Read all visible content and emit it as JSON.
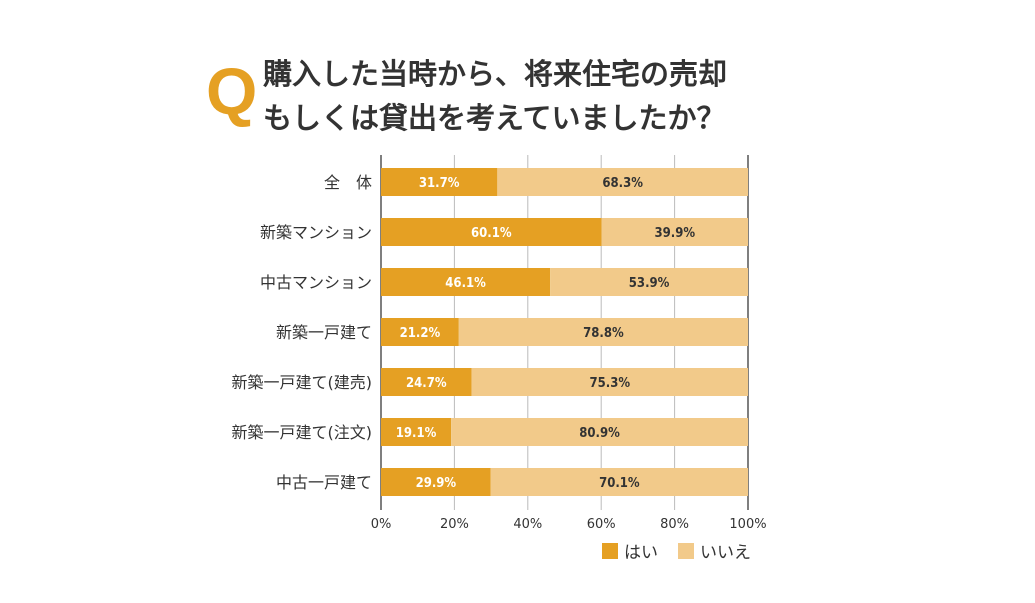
{
  "title": {
    "q_mark": "Q",
    "line1": "購入した当時から、将来住宅の売却",
    "line2": "もしくは貸出を考えていましたか？"
  },
  "chart_data": {
    "type": "bar",
    "orientation": "horizontal",
    "stacked": true,
    "categories": [
      "全　体",
      "新築マンション",
      "中古マンション",
      "新築一戸建て",
      "新築一戸建て(建売)",
      "新築一戸建て(注文)",
      "中古一戸建て"
    ],
    "series": [
      {
        "name": "はい",
        "color": "#e5a023",
        "values": [
          31.7,
          60.1,
          46.1,
          21.2,
          24.7,
          19.1,
          29.9
        ]
      },
      {
        "name": "いいえ",
        "color": "#f2ca8a",
        "values": [
          68.3,
          39.9,
          53.9,
          78.8,
          75.3,
          80.9,
          70.1
        ]
      }
    ],
    "xlim": [
      0,
      100
    ],
    "xticks": [
      "0%",
      "20%",
      "40%",
      "60%",
      "80%",
      "100%"
    ],
    "grid": true,
    "legend": "bottom-right",
    "value_suffix": "%"
  }
}
